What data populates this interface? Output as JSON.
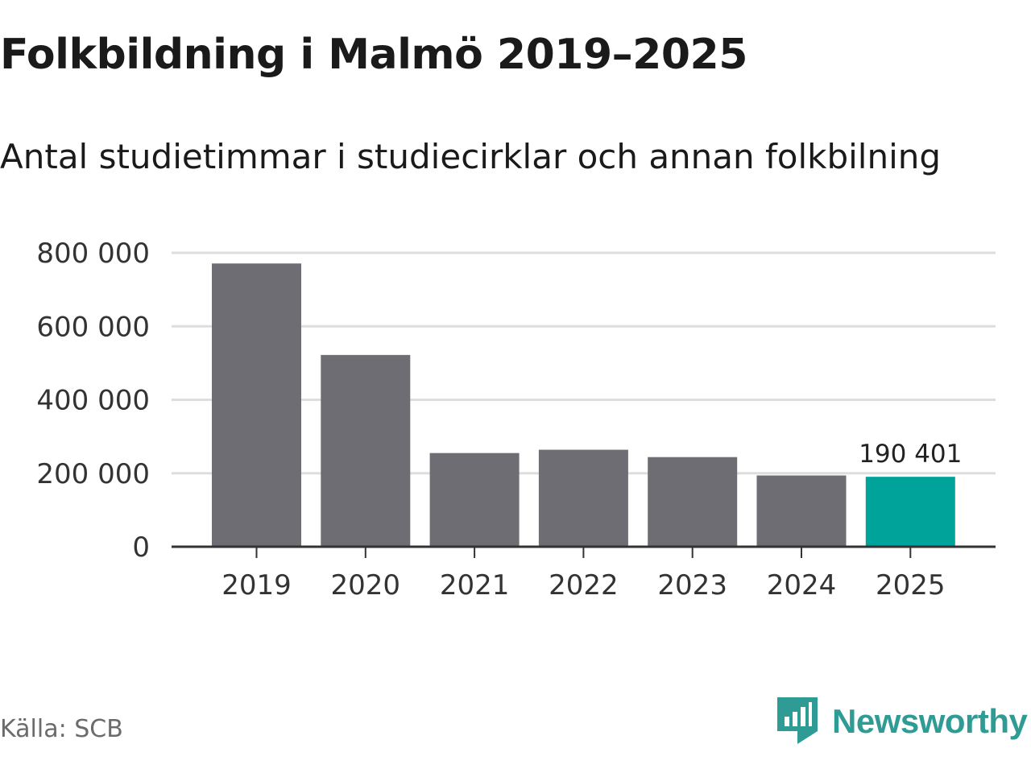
{
  "header": {
    "title": "Folkbildning i Malmö 2019–2025",
    "subtitle": "Antal studietimmar i studiecirklar och annan folkbilning"
  },
  "footer": {
    "source": "Källa: SCB",
    "brand": "Newsworthy"
  },
  "colors": {
    "bar": "#6e6d73",
    "highlight": "#00a39a",
    "grid": "#dddddd",
    "axis": "#333333",
    "brand": "#2e9c95"
  },
  "chart_data": {
    "type": "bar",
    "title": "Folkbildning i Malmö 2019–2025",
    "subtitle": "Antal studietimmar i studiecirklar och annan folkbilning",
    "categories": [
      "2019",
      "2020",
      "2021",
      "2022",
      "2023",
      "2024",
      "2025"
    ],
    "values": [
      771000,
      522000,
      255000,
      264000,
      244000,
      194000,
      190401
    ],
    "highlight_index": 6,
    "data_labels": [
      {
        "index": 6,
        "text": "190 401"
      }
    ],
    "yticks": [
      0,
      200000,
      400000,
      600000,
      800000
    ],
    "ytick_labels": [
      "0",
      "200 000",
      "400 000",
      "600 000",
      "800 000"
    ],
    "ylim": [
      0,
      800000
    ],
    "grid": true,
    "xlabel": "",
    "ylabel": ""
  }
}
